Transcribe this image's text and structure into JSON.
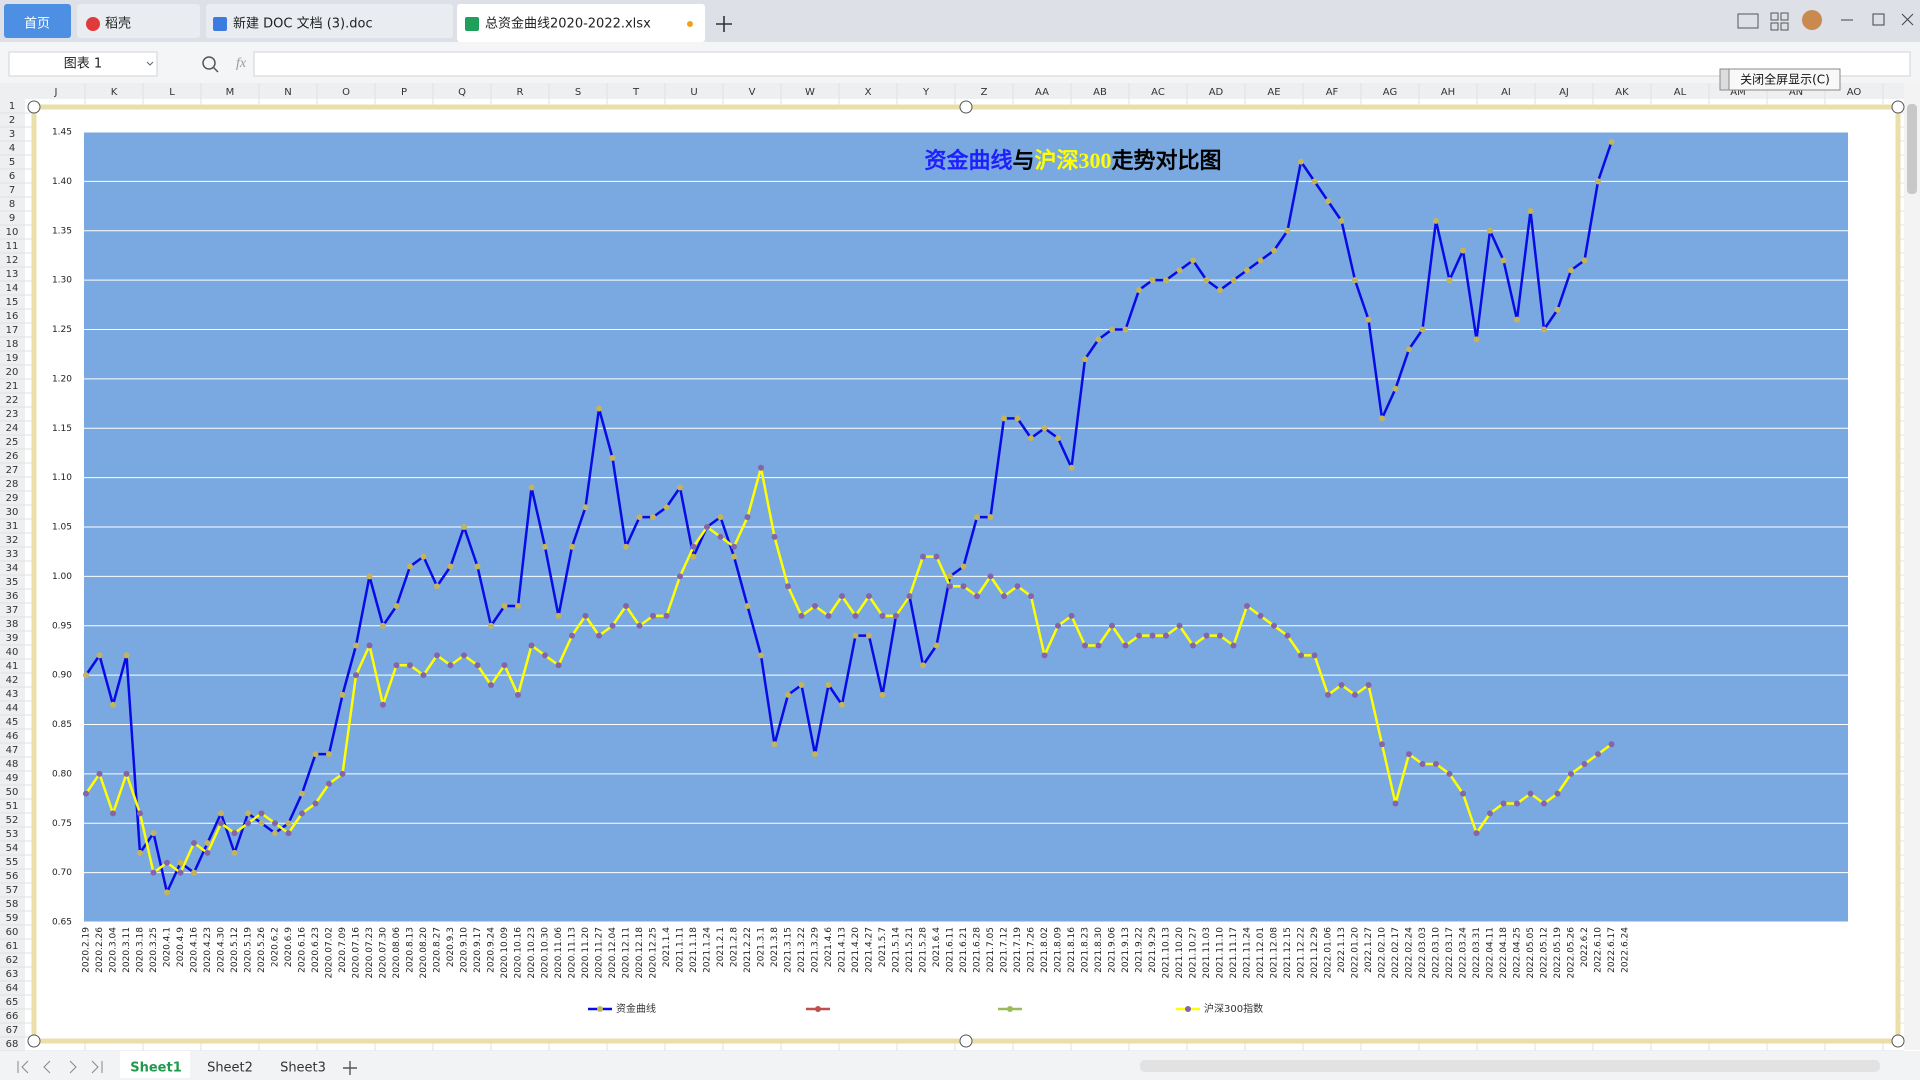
{
  "tabs": [
    "首页",
    "稻壳",
    "新建 DOC 文档 (3).doc",
    "总资金曲线2020-2022.xlsx"
  ],
  "name_box": "图表 1",
  "formula_label": "fx",
  "fullscreen_button": "关闭全屏显示(C)",
  "columns": [
    "J",
    "K",
    "L",
    "M",
    "N",
    "O",
    "P",
    "Q",
    "R",
    "S",
    "T",
    "U",
    "V",
    "W",
    "X",
    "Y",
    "Z",
    "AA",
    "AB",
    "AC",
    "AD",
    "AE",
    "AF",
    "AG",
    "AH",
    "AI",
    "AJ",
    "AK",
    "AL",
    "AM",
    "AN",
    "AO"
  ],
  "rows": [
    1,
    2,
    3,
    4,
    5,
    6,
    7,
    8,
    9,
    10,
    11,
    12,
    13,
    14,
    15,
    16,
    17,
    18,
    19,
    20,
    21,
    22,
    23,
    24,
    25,
    26,
    27,
    28,
    29,
    30,
    31,
    32,
    33,
    34,
    35,
    36,
    37,
    38,
    39,
    40,
    41,
    42,
    43,
    44,
    45,
    46,
    47,
    48,
    49,
    50,
    51,
    52,
    53,
    54,
    55,
    56,
    57,
    58,
    59,
    60,
    61,
    62,
    63,
    64,
    65,
    66,
    67,
    68
  ],
  "sheets": [
    "Sheet1",
    "Sheet2",
    "Sheet3"
  ],
  "chart_data": {
    "type": "line",
    "title": [
      {
        "text": "资金曲线",
        "color": "#1f1fff"
      },
      {
        "text": "与",
        "color": "#000000"
      },
      {
        "text": "沪深300",
        "color": "#ffff00"
      },
      {
        "text": "走势对比图",
        "color": "#000000"
      }
    ],
    "categories": [
      "2020.2.19",
      "2020.2.26",
      "2020.3.04",
      "2020.3.11",
      "2020.3.18",
      "2020.3.25",
      "2020.4.1",
      "2020.4.9",
      "2020.4.16",
      "2020.4.23",
      "2020.4.30",
      "2020.5.12",
      "2020.5.19",
      "2020.5.26",
      "2020.6.2",
      "2020.6.9",
      "2020.6.16",
      "2020.6.23",
      "2020.07.02",
      "2020.7.09",
      "2020.07.16",
      "2020.07.23",
      "2020.07.30",
      "2020.08.06",
      "2020.8.13",
      "2020.08.20",
      "2020.8.27",
      "2020.9.3",
      "2020.9.10",
      "2020.9.17",
      "2020.9.24",
      "2020.10.09",
      "2020.10.16",
      "2020.10.23",
      "2020.10.30",
      "2020.11.06",
      "2020.11.13",
      "2020.11.20",
      "2020.11.27",
      "2020.12.04",
      "2020.12.11",
      "2020.12.18",
      "2020.12.25",
      "2021.1.4",
      "2021.1.11",
      "2021.1.18",
      "2021.1.24",
      "2021.2.1",
      "2021.2.8",
      "2021.2.22",
      "2021.3.1",
      "2021.3.8",
      "2021.3.15",
      "2021.3.22",
      "2021.3.29",
      "2021.4.6",
      "2021.4.13",
      "2021.4.20",
      "2021.4.27",
      "2021.5.7",
      "2021.5.14",
      "2021.5.21",
      "2021.5.28",
      "2021.6.4",
      "2021.6.11",
      "2021.6.21",
      "2021.6.28",
      "2021.7.05",
      "2021.7.12",
      "2021.7.19",
      "2021.7.26",
      "2021.8.02",
      "2021.8.09",
      "2021.8.16",
      "2021.8.23",
      "2021.8.30",
      "2021.9.06",
      "2021.9.13",
      "2021.9.22",
      "2021.9.29",
      "2021.10.13",
      "2021.10.20",
      "2021.10.27",
      "2021.11.03",
      "2021.11.10",
      "2021.11.17",
      "2021.11.24",
      "2021.12.01",
      "2021.12.08",
      "2021.12.15",
      "2021.12.22",
      "2021.12.29",
      "2022.01.06",
      "2022.1.13",
      "2022.01.20",
      "2022.1.27",
      "2022.02.10",
      "2022.02.17",
      "2022.02.24",
      "2022.03.03",
      "2022.03.10",
      "2022.03.17",
      "2022.03.24",
      "2022.03.31",
      "2022.04.11",
      "2022.04.18",
      "2022.04.25",
      "2022.05.05",
      "2022.05.12",
      "2022.05.19",
      "2022.05.26",
      "2022.6.2",
      "2022.6.10",
      "2022.6.17",
      "2022.6.24"
    ],
    "series": [
      {
        "name": "资金曲线",
        "color": "#0a0ae6",
        "marker_color": "#c4b45a",
        "values": [
          0.9,
          0.92,
          0.87,
          0.92,
          0.72,
          0.74,
          0.68,
          0.71,
          0.7,
          0.73,
          0.76,
          0.72,
          0.76,
          0.75,
          0.74,
          0.75,
          0.78,
          0.82,
          0.82,
          0.88,
          0.93,
          1.0,
          0.95,
          0.97,
          1.01,
          1.02,
          0.99,
          1.01,
          1.05,
          1.01,
          0.95,
          0.97,
          0.97,
          1.09,
          1.03,
          0.96,
          1.03,
          1.07,
          1.17,
          1.12,
          1.03,
          1.06,
          1.06,
          1.07,
          1.09,
          1.02,
          1.05,
          1.06,
          1.02,
          0.97,
          0.92,
          0.83,
          0.88,
          0.89,
          0.82,
          0.89,
          0.87,
          0.94,
          0.94,
          0.88,
          0.96,
          0.98,
          0.91,
          0.93,
          1.0,
          1.01,
          1.06,
          1.06,
          1.16,
          1.16,
          1.14,
          1.15,
          1.14,
          1.11,
          1.22,
          1.24,
          1.25,
          1.25,
          1.29,
          1.3,
          1.3,
          1.31,
          1.32,
          1.3,
          1.29,
          1.3,
          1.31,
          1.32,
          1.33,
          1.35,
          1.42,
          1.4,
          1.38,
          1.36,
          1.3,
          1.26,
          1.16,
          1.19,
          1.23,
          1.25,
          1.36,
          1.3,
          1.33,
          1.24,
          1.35,
          1.32,
          1.26,
          1.37,
          1.25,
          1.27,
          1.31,
          1.32,
          1.4,
          1.44,
          null
        ]
      },
      {
        "name": "沪深300指数",
        "color": "#ffff00",
        "marker_color": "#8565a8",
        "values": [
          0.78,
          0.8,
          0.76,
          0.8,
          0.76,
          0.7,
          0.71,
          0.7,
          0.73,
          0.72,
          0.75,
          0.74,
          0.75,
          0.76,
          0.75,
          0.74,
          0.76,
          0.77,
          0.79,
          0.8,
          0.9,
          0.93,
          0.87,
          0.91,
          0.91,
          0.9,
          0.92,
          0.91,
          0.92,
          0.91,
          0.89,
          0.91,
          0.88,
          0.93,
          0.92,
          0.91,
          0.94,
          0.96,
          0.94,
          0.95,
          0.97,
          0.95,
          0.96,
          0.96,
          1.0,
          1.03,
          1.05,
          1.04,
          1.03,
          1.06,
          1.11,
          1.04,
          0.99,
          0.96,
          0.97,
          0.96,
          0.98,
          0.96,
          0.98,
          0.96,
          0.96,
          0.98,
          1.02,
          1.02,
          0.99,
          0.99,
          0.98,
          1.0,
          0.98,
          0.99,
          0.98,
          0.92,
          0.95,
          0.96,
          0.93,
          0.93,
          0.95,
          0.93,
          0.94,
          0.94,
          0.94,
          0.95,
          0.93,
          0.94,
          0.94,
          0.93,
          0.97,
          0.96,
          0.95,
          0.94,
          0.92,
          0.92,
          0.88,
          0.89,
          0.88,
          0.89,
          0.83,
          0.77,
          0.82,
          0.81,
          0.81,
          0.8,
          0.78,
          0.74,
          0.76,
          0.77,
          0.77,
          0.78,
          0.77,
          0.78,
          0.8,
          0.81,
          0.82,
          0.83,
          null
        ]
      }
    ],
    "ylim": [
      0.65,
      1.45
    ],
    "yticks": [
      0.65,
      {
        "value": 0.7,
        "label": "0.70"
      },
      0.75,
      {
        "value": 0.8,
        "label": "0.80"
      },
      0.85,
      {
        "value": 0.9,
        "label": "0.90"
      },
      0.95,
      {
        "value": 1,
        "label": "1.00"
      },
      1.05,
      {
        "value": 1.1,
        "label": "1.10"
      },
      1.15,
      {
        "value": 1.2,
        "label": "1.20"
      },
      1.25,
      {
        "value": 1.3,
        "label": "1.30"
      },
      1.35,
      {
        "value": 1.4,
        "label": "1.40"
      },
      1.45
    ],
    "grid": true,
    "plot_color": "#79a9e0",
    "legend": "bottom"
  }
}
